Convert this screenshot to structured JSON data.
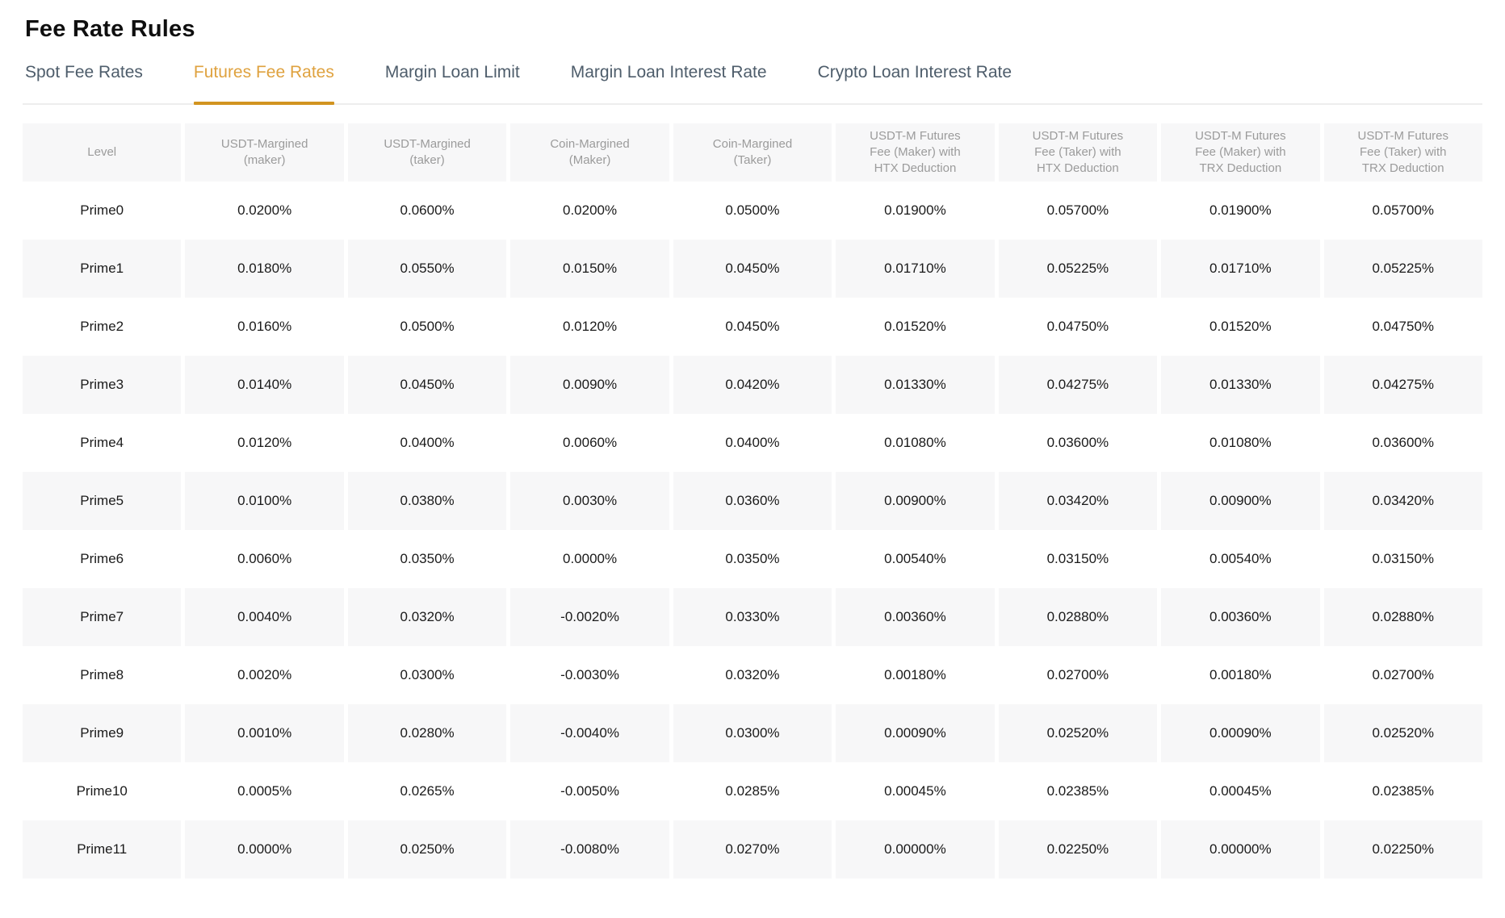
{
  "page": {
    "title": "Fee Rate Rules"
  },
  "tabs": {
    "items": [
      {
        "label": "Spot Fee Rates",
        "active": false
      },
      {
        "label": "Futures Fee Rates",
        "active": true
      },
      {
        "label": "Margin Loan Limit",
        "active": false
      },
      {
        "label": "Margin Loan Interest Rate",
        "active": false
      },
      {
        "label": "Crypto Loan Interest Rate",
        "active": false
      }
    ]
  },
  "table": {
    "columns": [
      "Level",
      "USDT-Margined\n(maker)",
      "USDT-Margined\n(taker)",
      "Coin-Margined\n(Maker)",
      "Coin-Margined\n(Taker)",
      "USDT-M Futures\nFee (Maker) with\nHTX Deduction",
      "USDT-M Futures\nFee (Taker) with\nHTX Deduction",
      "USDT-M Futures\nFee (Maker) with\nTRX Deduction",
      "USDT-M Futures\nFee (Taker) with\nTRX Deduction"
    ],
    "rows": [
      {
        "level": "Prime0",
        "values": [
          "0.0200%",
          "0.0600%",
          "0.0200%",
          "0.0500%",
          "0.01900%",
          "0.05700%",
          "0.01900%",
          "0.05700%"
        ]
      },
      {
        "level": "Prime1",
        "values": [
          "0.0180%",
          "0.0550%",
          "0.0150%",
          "0.0450%",
          "0.01710%",
          "0.05225%",
          "0.01710%",
          "0.05225%"
        ]
      },
      {
        "level": "Prime2",
        "values": [
          "0.0160%",
          "0.0500%",
          "0.0120%",
          "0.0450%",
          "0.01520%",
          "0.04750%",
          "0.01520%",
          "0.04750%"
        ]
      },
      {
        "level": "Prime3",
        "values": [
          "0.0140%",
          "0.0450%",
          "0.0090%",
          "0.0420%",
          "0.01330%",
          "0.04275%",
          "0.01330%",
          "0.04275%"
        ]
      },
      {
        "level": "Prime4",
        "values": [
          "0.0120%",
          "0.0400%",
          "0.0060%",
          "0.0400%",
          "0.01080%",
          "0.03600%",
          "0.01080%",
          "0.03600%"
        ]
      },
      {
        "level": "Prime5",
        "values": [
          "0.0100%",
          "0.0380%",
          "0.0030%",
          "0.0360%",
          "0.00900%",
          "0.03420%",
          "0.00900%",
          "0.03420%"
        ]
      },
      {
        "level": "Prime6",
        "values": [
          "0.0060%",
          "0.0350%",
          "0.0000%",
          "0.0350%",
          "0.00540%",
          "0.03150%",
          "0.00540%",
          "0.03150%"
        ]
      },
      {
        "level": "Prime7",
        "values": [
          "0.0040%",
          "0.0320%",
          "-0.0020%",
          "0.0330%",
          "0.00360%",
          "0.02880%",
          "0.00360%",
          "0.02880%"
        ]
      },
      {
        "level": "Prime8",
        "values": [
          "0.0020%",
          "0.0300%",
          "-0.0030%",
          "0.0320%",
          "0.00180%",
          "0.02700%",
          "0.00180%",
          "0.02700%"
        ]
      },
      {
        "level": "Prime9",
        "values": [
          "0.0010%",
          "0.0280%",
          "-0.0040%",
          "0.0300%",
          "0.00090%",
          "0.02520%",
          "0.00090%",
          "0.02520%"
        ]
      },
      {
        "level": "Prime10",
        "values": [
          "0.0005%",
          "0.0265%",
          "-0.0050%",
          "0.0285%",
          "0.00045%",
          "0.02385%",
          "0.00045%",
          "0.02385%"
        ]
      },
      {
        "level": "Prime11",
        "values": [
          "0.0000%",
          "0.0250%",
          "-0.0080%",
          "0.0270%",
          "0.00000%",
          "0.02250%",
          "0.00000%",
          "0.02250%"
        ]
      }
    ]
  },
  "colors": {
    "accent_text": "#dfa23f",
    "accent_underline": "#d29420",
    "tab_inactive": "#4e5d6b",
    "header_text": "#9b9b9b",
    "body_text": "#1a1a1a",
    "stripe_bg": "#f7f7f8"
  }
}
